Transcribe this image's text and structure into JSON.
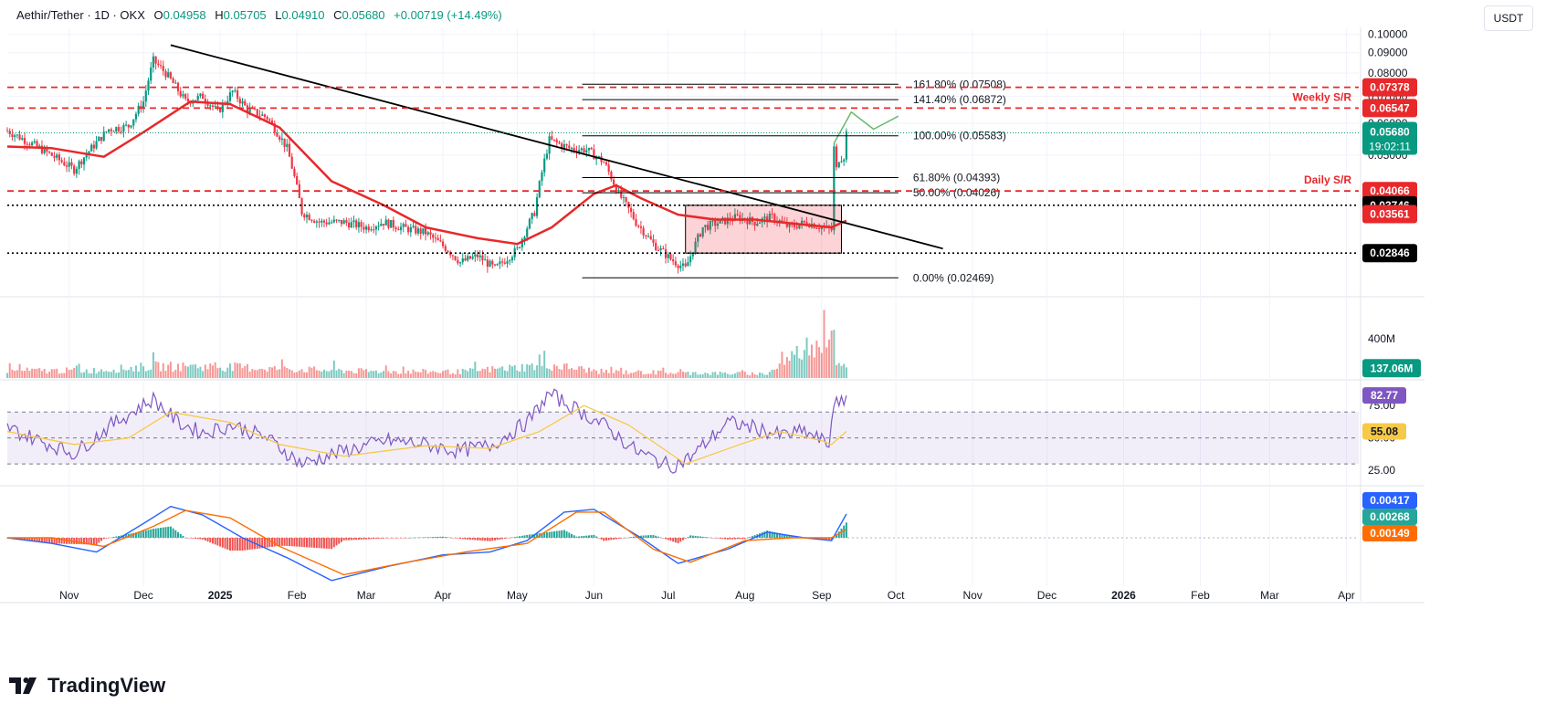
{
  "header": {
    "symbol": "Aethir/Tether · 1D · OKX",
    "open_label": "O",
    "open": "0.04958",
    "high_label": "H",
    "high": "0.05705",
    "low_label": "L",
    "low": "0.04910",
    "close_label": "C",
    "close": "0.05680",
    "change": "+0.00719 (+14.49%)",
    "currency": "USDT"
  },
  "brand": {
    "name": "TradingView"
  },
  "colors": {
    "up": "#089981",
    "down": "#f23645",
    "ma": "#e8282a",
    "rsi": "#7e57c2",
    "rsi_ma": "#f7c948",
    "macd": "#2962ff",
    "signal": "#ff6d00",
    "hist_up": "#26a69a",
    "hist_down": "#ef5350",
    "resistance": "#e8282a",
    "trend": "#000000"
  },
  "chart_data": [
    {
      "type": "line",
      "panel": "price",
      "scale": "log",
      "x_ticks": [
        "Nov",
        "Dec",
        "2025",
        "Feb",
        "Mar",
        "Apr",
        "May",
        "Jun",
        "Jul",
        "Aug",
        "Sep",
        "Oct",
        "Nov",
        "Dec",
        "2026",
        "Feb",
        "Mar",
        "Apr"
      ],
      "x_tick_dates": [
        "2024-11-01",
        "2024-12-01",
        "2025-01-01",
        "2025-02-01",
        "2025-03-01",
        "2025-04-01",
        "2025-05-01",
        "2025-06-01",
        "2025-07-01",
        "2025-08-01",
        "2025-09-01",
        "2025-10-01",
        "2025-11-01",
        "2025-12-01",
        "2026-01-01",
        "2026-02-01",
        "2026-03-01",
        "2026-04-01"
      ],
      "x_range": [
        "2024-10-07",
        "2026-04-06"
      ],
      "y_ticks": [
        "0.10000",
        "0.09000",
        "0.08000",
        "0.07000",
        "0.06000",
        "0.05000"
      ],
      "y_tick_values": [
        0.1,
        0.09,
        0.08,
        0.07,
        0.06,
        0.05
      ],
      "ylim": [
        0.0225,
        0.103
      ],
      "series": [
        {
          "role": "close",
          "x": [
            "2024-10-07",
            "2024-10-20",
            "2024-11-03",
            "2024-11-10",
            "2024-11-17",
            "2024-11-25",
            "2024-12-01",
            "2024-12-05",
            "2024-12-10",
            "2024-12-18",
            "2024-12-25",
            "2024-12-31",
            "2025-01-06",
            "2025-01-12",
            "2025-01-20",
            "2025-01-28",
            "2025-02-03",
            "2025-02-10",
            "2025-02-20",
            "2025-03-01",
            "2025-03-08",
            "2025-03-15",
            "2025-03-25",
            "2025-04-03",
            "2025-04-08",
            "2025-04-15",
            "2025-04-22",
            "2025-05-01",
            "2025-05-08",
            "2025-05-14",
            "2025-05-22",
            "2025-05-29",
            "2025-06-05",
            "2025-06-11",
            "2025-06-18",
            "2025-06-25",
            "2025-07-02",
            "2025-07-08",
            "2025-07-15",
            "2025-07-22",
            "2025-07-29",
            "2025-08-05",
            "2025-08-12",
            "2025-08-19",
            "2025-08-26",
            "2025-09-01",
            "2025-09-05",
            "2025-09-06",
            "2025-09-07",
            "2025-09-08",
            "2025-09-10",
            "2025-09-11"
          ],
          "values": [
            0.0575,
            0.052,
            0.046,
            0.052,
            0.058,
            0.059,
            0.068,
            0.086,
            0.08,
            0.068,
            0.07,
            0.064,
            0.072,
            0.065,
            0.062,
            0.052,
            0.036,
            0.034,
            0.034,
            0.033,
            0.034,
            0.033,
            0.032,
            0.029,
            0.027,
            0.028,
            0.026,
            0.029,
            0.036,
            0.0545,
            0.052,
            0.0515,
            0.048,
            0.04,
            0.034,
            0.03,
            0.0275,
            0.026,
            0.033,
            0.034,
            0.035,
            0.034,
            0.035,
            0.033,
            0.034,
            0.033,
            0.0325,
            0.052,
            0.046,
            0.049,
            0.0497,
            0.0568
          ]
        },
        {
          "role": "ma",
          "x": [
            "2024-10-07",
            "2024-10-25",
            "2024-11-15",
            "2024-12-01",
            "2024-12-20",
            "2025-01-05",
            "2025-01-25",
            "2025-02-15",
            "2025-03-08",
            "2025-03-25",
            "2025-04-15",
            "2025-05-01",
            "2025-05-15",
            "2025-06-01",
            "2025-06-10",
            "2025-06-20",
            "2025-07-05",
            "2025-07-20",
            "2025-08-05",
            "2025-08-25",
            "2025-09-05",
            "2025-09-11"
          ],
          "values": [
            0.0525,
            0.052,
            0.0495,
            0.057,
            0.068,
            0.067,
            0.0585,
            0.043,
            0.0375,
            0.033,
            0.031,
            0.03,
            0.033,
            0.04,
            0.042,
            0.039,
            0.0355,
            0.0345,
            0.0345,
            0.0335,
            0.033,
            0.0343
          ]
        },
        {
          "role": "projection",
          "x": [
            "2025-09-06",
            "2025-09-13",
            "2025-09-22",
            "2025-10-02"
          ],
          "values": [
            0.0535,
            0.064,
            0.058,
            0.0625
          ]
        }
      ],
      "horizontal_lines": [
        {
          "value": 0.07378,
          "label": "0.07378",
          "style": "dashed-red"
        },
        {
          "value": 0.06547,
          "label": "0.06547",
          "style": "dashed-red",
          "note": "Weekly S/R"
        },
        {
          "value": 0.04066,
          "label": "0.04066",
          "style": "dashed-red",
          "note": "Daily S/R"
        },
        {
          "value": 0.03746,
          "label": "0.03746",
          "style": "dotted-black"
        },
        {
          "value": 0.02846,
          "label": "0.02846",
          "style": "dotted-black"
        },
        {
          "value": 0.0568,
          "label": "0.05680",
          "style": "last-price",
          "countdown": "19:02:11"
        }
      ],
      "extra_axis_labels": [
        {
          "value": 0.03561,
          "label": "0.03561",
          "style": "ma"
        }
      ],
      "fib_levels": [
        {
          "value": 0.07508,
          "label": "161.80% (0.07508)"
        },
        {
          "value": 0.06872,
          "label": "141.40% (0.06872)"
        },
        {
          "value": 0.05583,
          "label": "100.00% (0.05583)"
        },
        {
          "value": 0.04393,
          "label": "61.80% (0.04393)"
        },
        {
          "value": 0.04026,
          "label": "50.00% (0.04026)"
        },
        {
          "value": 0.02469,
          "label": "0.00% (0.02469)"
        }
      ],
      "fib_x_range": [
        "2025-05-28",
        "2025-10-02"
      ],
      "trendline": {
        "x": [
          "2024-12-12",
          "2025-10-20"
        ],
        "values": [
          0.094,
          0.0292
        ]
      },
      "range_box": {
        "x": [
          "2025-07-08",
          "2025-09-09"
        ],
        "top": 0.03746,
        "bottom": 0.02846
      }
    },
    {
      "type": "bar",
      "panel": "volume",
      "y_ticks": [
        "400M"
      ],
      "y_tick_values": [
        400000000
      ],
      "ylim": [
        0,
        800000000
      ],
      "last_label": "137.06M",
      "series": [
        {
          "name": "volume",
          "x": [
            "2024-11-10",
            "2024-12-05",
            "2025-01-05",
            "2025-02-01",
            "2025-03-01",
            "2025-04-07",
            "2025-05-14",
            "2025-06-05",
            "2025-07-10",
            "2025-08-10",
            "2025-09-06",
            "2025-09-07",
            "2025-09-08",
            "2025-09-10",
            "2025-09-11"
          ],
          "values": [
            120000000,
            190000000,
            180000000,
            140000000,
            110000000,
            100000000,
            210000000,
            100000000,
            80000000,
            70000000,
            800000000,
            310000000,
            190000000,
            180000000,
            137060000
          ]
        }
      ]
    },
    {
      "type": "line",
      "panel": "rsi",
      "y_ticks": [
        "75.00",
        "50.00",
        "25.00"
      ],
      "y_tick_values": [
        75,
        50,
        25
      ],
      "ylim": [
        16,
        92
      ],
      "band": [
        30,
        70
      ],
      "midline": 50,
      "last_labels": [
        "82.77",
        "55.08"
      ],
      "series": [
        {
          "role": "rsi",
          "x": [
            "2024-10-07",
            "2024-10-20",
            "2024-11-03",
            "2024-11-18",
            "2024-12-05",
            "2024-12-15",
            "2024-12-25",
            "2025-01-06",
            "2025-01-20",
            "2025-02-03",
            "2025-02-20",
            "2025-03-10",
            "2025-03-25",
            "2025-04-07",
            "2025-04-20",
            "2025-05-05",
            "2025-05-14",
            "2025-05-25",
            "2025-06-05",
            "2025-06-18",
            "2025-07-02",
            "2025-07-10",
            "2025-07-25",
            "2025-08-05",
            "2025-08-15",
            "2025-08-25",
            "2025-09-04",
            "2025-09-06",
            "2025-09-08",
            "2025-09-11"
          ],
          "values": [
            58,
            48,
            38,
            60,
            80,
            62,
            54,
            60,
            50,
            30,
            40,
            48,
            45,
            40,
            44,
            62,
            84,
            72,
            60,
            40,
            28,
            35,
            62,
            58,
            52,
            55,
            45,
            80,
            73,
            82.77
          ]
        },
        {
          "role": "rsi_ma",
          "x": [
            "2024-10-07",
            "2024-11-03",
            "2024-11-25",
            "2024-12-12",
            "2025-01-05",
            "2025-01-25",
            "2025-02-20",
            "2025-03-25",
            "2025-04-20",
            "2025-05-10",
            "2025-05-28",
            "2025-06-15",
            "2025-07-08",
            "2025-07-30",
            "2025-08-15",
            "2025-09-01",
            "2025-09-05",
            "2025-09-11"
          ],
          "values": [
            55,
            45,
            50,
            70,
            62,
            45,
            36,
            44,
            42,
            55,
            75,
            60,
            30,
            45,
            55,
            48,
            45,
            55.08
          ]
        }
      ]
    },
    {
      "type": "line",
      "panel": "macd",
      "ylim": [
        -0.0085,
        0.0085
      ],
      "zero_line": 0,
      "last_labels": [
        "0.00417",
        "0.00268",
        "0.00149"
      ],
      "series": [
        {
          "role": "macd",
          "x": [
            "2024-10-07",
            "2024-10-25",
            "2024-11-12",
            "2024-12-01",
            "2024-12-12",
            "2024-12-25",
            "2025-01-10",
            "2025-01-28",
            "2025-02-15",
            "2025-03-10",
            "2025-04-01",
            "2025-04-20",
            "2025-05-05",
            "2025-05-20",
            "2025-06-01",
            "2025-06-20",
            "2025-07-05",
            "2025-07-25",
            "2025-08-10",
            "2025-08-25",
            "2025-09-05",
            "2025-09-11"
          ],
          "values": [
            0.0,
            -0.001,
            -0.0025,
            0.0025,
            0.0055,
            0.004,
            0.0,
            -0.0035,
            -0.0075,
            -0.005,
            -0.003,
            -0.0025,
            -0.0005,
            0.0045,
            0.005,
            0.0,
            -0.0045,
            -0.002,
            0.001,
            0.0,
            -0.0005,
            0.00417
          ]
        },
        {
          "role": "signal",
          "x": [
            "2024-10-07",
            "2024-10-25",
            "2024-11-15",
            "2024-12-05",
            "2024-12-18",
            "2025-01-05",
            "2025-01-25",
            "2025-02-20",
            "2025-03-15",
            "2025-04-10",
            "2025-05-05",
            "2025-05-25",
            "2025-06-05",
            "2025-06-25",
            "2025-07-10",
            "2025-08-01",
            "2025-08-20",
            "2025-09-05",
            "2025-09-11"
          ],
          "values": [
            0.0,
            0.0,
            -0.0015,
            0.002,
            0.0048,
            0.0035,
            -0.0015,
            -0.0065,
            -0.0045,
            -0.0025,
            -0.001,
            0.0045,
            0.0045,
            -0.002,
            -0.0043,
            -0.0005,
            0.0,
            0.0,
            0.00149
          ]
        }
      ],
      "histogram_last": 0.00268
    }
  ]
}
